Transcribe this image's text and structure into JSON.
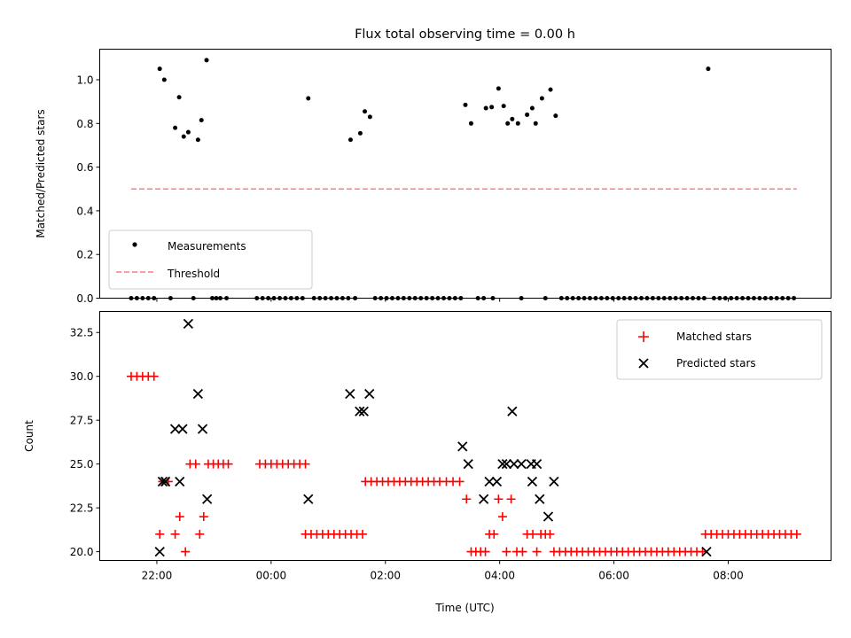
{
  "chart_data": [
    {
      "type": "scatter",
      "title": "Flux total observing time = 0.00 h",
      "xlabel": "",
      "ylabel": "Matched/Predicted stars",
      "x_unit": "hours from 00:00 UTC",
      "xlim": [
        -3.0,
        9.8
      ],
      "ylim": [
        0.0,
        1.14
      ],
      "yticks": [
        0.0,
        0.2,
        0.4,
        0.6,
        0.8,
        1.0
      ],
      "ytick_labels": [
        "0.0",
        "0.2",
        "0.4",
        "0.6",
        "0.8",
        "1.0"
      ],
      "grid": false,
      "legend": {
        "position": "lower-left",
        "entries": [
          "Measurements",
          "Threshold"
        ]
      },
      "threshold": {
        "name": "Threshold",
        "y": 0.5,
        "x_range": [
          -2.45,
          9.2
        ],
        "color": "#ff7f7f",
        "style": "dashed"
      },
      "series": [
        {
          "name": "Measurements",
          "color": "#000000",
          "marker": "dot",
          "points": [
            [
              -1.95,
              1.05
            ],
            [
              -1.87,
              1.0
            ],
            [
              -1.68,
              0.78
            ],
            [
              -1.61,
              0.92
            ],
            [
              -1.53,
              0.74
            ],
            [
              -1.45,
              0.76
            ],
            [
              -1.28,
              0.725
            ],
            [
              -1.22,
              0.815
            ],
            [
              -1.13,
              1.09
            ],
            [
              0.65,
              0.915
            ],
            [
              1.39,
              0.725
            ],
            [
              1.56,
              0.755
            ],
            [
              1.64,
              0.855
            ],
            [
              1.73,
              0.83
            ],
            [
              3.4,
              0.885
            ],
            [
              3.5,
              0.8
            ],
            [
              3.76,
              0.87
            ],
            [
              3.86,
              0.875
            ],
            [
              3.98,
              0.96
            ],
            [
              4.07,
              0.88
            ],
            [
              4.14,
              0.8
            ],
            [
              4.22,
              0.82
            ],
            [
              4.32,
              0.8
            ],
            [
              4.48,
              0.84
            ],
            [
              4.57,
              0.87
            ],
            [
              4.63,
              0.8
            ],
            [
              4.74,
              0.915
            ],
            [
              4.89,
              0.955
            ],
            [
              4.98,
              0.835
            ],
            [
              7.65,
              1.05
            ],
            [
              -2.45,
              0.0
            ],
            [
              -2.35,
              0.0
            ],
            [
              -2.25,
              0.0
            ],
            [
              -2.15,
              0.0
            ],
            [
              -2.05,
              0.0
            ],
            [
              -1.76,
              0.0
            ],
            [
              -1.36,
              0.0
            ],
            [
              -1.03,
              0.0
            ],
            [
              -0.96,
              0.0
            ],
            [
              -0.89,
              0.0
            ],
            [
              -0.78,
              0.0
            ],
            [
              -0.25,
              0.0
            ],
            [
              -0.15,
              0.0
            ],
            [
              -0.05,
              0.0
            ],
            [
              0.05,
              0.0
            ],
            [
              0.15,
              0.0
            ],
            [
              0.25,
              0.0
            ],
            [
              0.35,
              0.0
            ],
            [
              0.45,
              0.0
            ],
            [
              0.55,
              0.0
            ],
            [
              0.75,
              0.0
            ],
            [
              0.85,
              0.0
            ],
            [
              0.95,
              0.0
            ],
            [
              1.05,
              0.0
            ],
            [
              1.15,
              0.0
            ],
            [
              1.25,
              0.0
            ],
            [
              1.35,
              0.0
            ],
            [
              1.47,
              0.0
            ],
            [
              1.82,
              0.0
            ],
            [
              1.92,
              0.0
            ],
            [
              2.02,
              0.0
            ],
            [
              2.12,
              0.0
            ],
            [
              2.22,
              0.0
            ],
            [
              2.32,
              0.0
            ],
            [
              2.42,
              0.0
            ],
            [
              2.52,
              0.0
            ],
            [
              2.62,
              0.0
            ],
            [
              2.72,
              0.0
            ],
            [
              2.82,
              0.0
            ],
            [
              2.92,
              0.0
            ],
            [
              3.02,
              0.0
            ],
            [
              3.12,
              0.0
            ],
            [
              3.22,
              0.0
            ],
            [
              3.32,
              0.0
            ],
            [
              3.62,
              0.0
            ],
            [
              3.72,
              0.0
            ],
            [
              3.88,
              0.0
            ],
            [
              4.38,
              0.0
            ],
            [
              4.8,
              0.0
            ],
            [
              5.08,
              0.0
            ],
            [
              5.18,
              0.0
            ],
            [
              5.28,
              0.0
            ],
            [
              5.38,
              0.0
            ],
            [
              5.48,
              0.0
            ],
            [
              5.58,
              0.0
            ],
            [
              5.68,
              0.0
            ],
            [
              5.78,
              0.0
            ],
            [
              5.88,
              0.0
            ],
            [
              5.98,
              0.0
            ],
            [
              6.08,
              0.0
            ],
            [
              6.18,
              0.0
            ],
            [
              6.28,
              0.0
            ],
            [
              6.38,
              0.0
            ],
            [
              6.48,
              0.0
            ],
            [
              6.58,
              0.0
            ],
            [
              6.68,
              0.0
            ],
            [
              6.78,
              0.0
            ],
            [
              6.88,
              0.0
            ],
            [
              6.98,
              0.0
            ],
            [
              7.08,
              0.0
            ],
            [
              7.18,
              0.0
            ],
            [
              7.28,
              0.0
            ],
            [
              7.38,
              0.0
            ],
            [
              7.48,
              0.0
            ],
            [
              7.58,
              0.0
            ],
            [
              7.75,
              0.0
            ],
            [
              7.85,
              0.0
            ],
            [
              7.95,
              0.0
            ],
            [
              8.05,
              0.0
            ],
            [
              8.15,
              0.0
            ],
            [
              8.25,
              0.0
            ],
            [
              8.35,
              0.0
            ],
            [
              8.45,
              0.0
            ],
            [
              8.55,
              0.0
            ],
            [
              8.65,
              0.0
            ],
            [
              8.75,
              0.0
            ],
            [
              8.85,
              0.0
            ],
            [
              8.95,
              0.0
            ],
            [
              9.05,
              0.0
            ],
            [
              9.15,
              0.0
            ]
          ]
        }
      ]
    },
    {
      "type": "scatter",
      "title": "",
      "xlabel": "Time (UTC)",
      "ylabel": "Count",
      "x_unit": "hours from 00:00 UTC",
      "xlim": [
        -3.0,
        9.8
      ],
      "ylim": [
        19.5,
        33.7
      ],
      "xticks": [
        -2,
        0,
        2,
        4,
        6,
        8
      ],
      "xtick_labels": [
        "22:00",
        "00:00",
        "02:00",
        "04:00",
        "06:00",
        "08:00"
      ],
      "yticks": [
        20.0,
        22.5,
        25.0,
        27.5,
        30.0,
        32.5
      ],
      "ytick_labels": [
        "20.0",
        "22.5",
        "25.0",
        "27.5",
        "30.0",
        "32.5"
      ],
      "grid": false,
      "legend": {
        "position": "top-right",
        "entries": [
          "Matched stars",
          "Predicted stars"
        ]
      },
      "series": [
        {
          "name": "Matched stars",
          "color": "#ff0000",
          "marker": "plus",
          "runs": [
            {
              "x_start": -2.45,
              "x_end": -2.05,
              "y": 30
            },
            {
              "x_start": -1.95,
              "x_end": -1.95,
              "y": 21
            },
            {
              "x_start": -1.9,
              "x_end": -1.8,
              "y": 24
            },
            {
              "x_start": -1.68,
              "x_end": -1.68,
              "y": 21
            },
            {
              "x_start": -1.6,
              "x_end": -1.6,
              "y": 22
            },
            {
              "x_start": -1.5,
              "x_end": -1.5,
              "y": 20
            },
            {
              "x_start": -1.42,
              "x_end": -1.32,
              "y": 25
            },
            {
              "x_start": -1.25,
              "x_end": -1.25,
              "y": 21
            },
            {
              "x_start": -1.18,
              "x_end": -1.18,
              "y": 22
            },
            {
              "x_start": -1.1,
              "x_end": -0.75,
              "y": 25
            },
            {
              "x_start": -0.2,
              "x_end": 0.6,
              "y": 25
            },
            {
              "x_start": 0.6,
              "x_end": 1.6,
              "y": 21
            },
            {
              "x_start": 1.65,
              "x_end": 2.85,
              "y": 24
            },
            {
              "x_start": 2.95,
              "x_end": 3.3,
              "y": 24
            },
            {
              "x_start": 3.42,
              "x_end": 3.42,
              "y": 23
            },
            {
              "x_start": 3.5,
              "x_end": 3.75,
              "y": 20
            },
            {
              "x_start": 3.82,
              "x_end": 3.9,
              "y": 21
            },
            {
              "x_start": 3.98,
              "x_end": 3.98,
              "y": 23
            },
            {
              "x_start": 4.05,
              "x_end": 4.05,
              "y": 22
            },
            {
              "x_start": 4.12,
              "x_end": 4.12,
              "y": 20
            },
            {
              "x_start": 4.2,
              "x_end": 4.2,
              "y": 23
            },
            {
              "x_start": 4.3,
              "x_end": 4.4,
              "y": 20
            },
            {
              "x_start": 4.48,
              "x_end": 4.58,
              "y": 21
            },
            {
              "x_start": 4.65,
              "x_end": 4.65,
              "y": 20
            },
            {
              "x_start": 4.72,
              "x_end": 4.88,
              "y": 21
            },
            {
              "x_start": 4.95,
              "x_end": 7.55,
              "y": 20
            },
            {
              "x_start": 7.6,
              "x_end": 9.2,
              "y": 21
            }
          ]
        },
        {
          "name": "Predicted stars",
          "color": "#000000",
          "marker": "x",
          "points": [
            [
              -1.95,
              20
            ],
            [
              -1.9,
              24
            ],
            [
              -1.85,
              24
            ],
            [
              -1.68,
              27
            ],
            [
              -1.6,
              24
            ],
            [
              -1.55,
              27
            ],
            [
              -1.45,
              33
            ],
            [
              -1.28,
              29
            ],
            [
              -1.2,
              27
            ],
            [
              -1.12,
              23
            ],
            [
              0.65,
              23
            ],
            [
              1.38,
              29
            ],
            [
              1.55,
              28
            ],
            [
              1.62,
              28
            ],
            [
              1.72,
              29
            ],
            [
              3.35,
              26
            ],
            [
              3.45,
              25
            ],
            [
              3.72,
              23
            ],
            [
              3.82,
              24
            ],
            [
              3.95,
              24
            ],
            [
              4.05,
              25
            ],
            [
              4.12,
              25
            ],
            [
              4.22,
              28
            ],
            [
              4.25,
              25
            ],
            [
              4.38,
              25
            ],
            [
              4.55,
              25
            ],
            [
              4.57,
              24
            ],
            [
              4.65,
              25
            ],
            [
              4.7,
              23
            ],
            [
              4.85,
              22
            ],
            [
              4.95,
              24
            ],
            [
              7.62,
              20
            ]
          ]
        }
      ]
    }
  ]
}
